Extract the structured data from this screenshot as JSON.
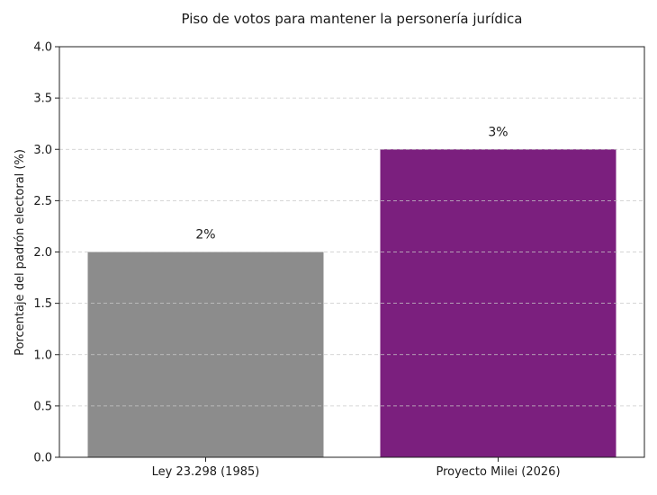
{
  "chart_data": {
    "type": "bar",
    "title": "Piso de votos para mantener la personería jurídica",
    "xlabel": "",
    "ylabel": "Porcentaje del padrón electoral (%)",
    "categories": [
      "Ley 23.298 (1985)",
      "Proyecto Milei (2026)"
    ],
    "values": [
      2,
      3
    ],
    "data_labels": [
      "2%",
      "3%"
    ],
    "colors": [
      "#8c8c8c",
      "#7b1f7e"
    ],
    "ylim": [
      0,
      4.0
    ],
    "yticks": [
      "0.0",
      "0.5",
      "1.0",
      "1.5",
      "2.0",
      "2.5",
      "3.0",
      "3.5",
      "4.0"
    ],
    "grid": "y, dashed",
    "legend": "none"
  }
}
